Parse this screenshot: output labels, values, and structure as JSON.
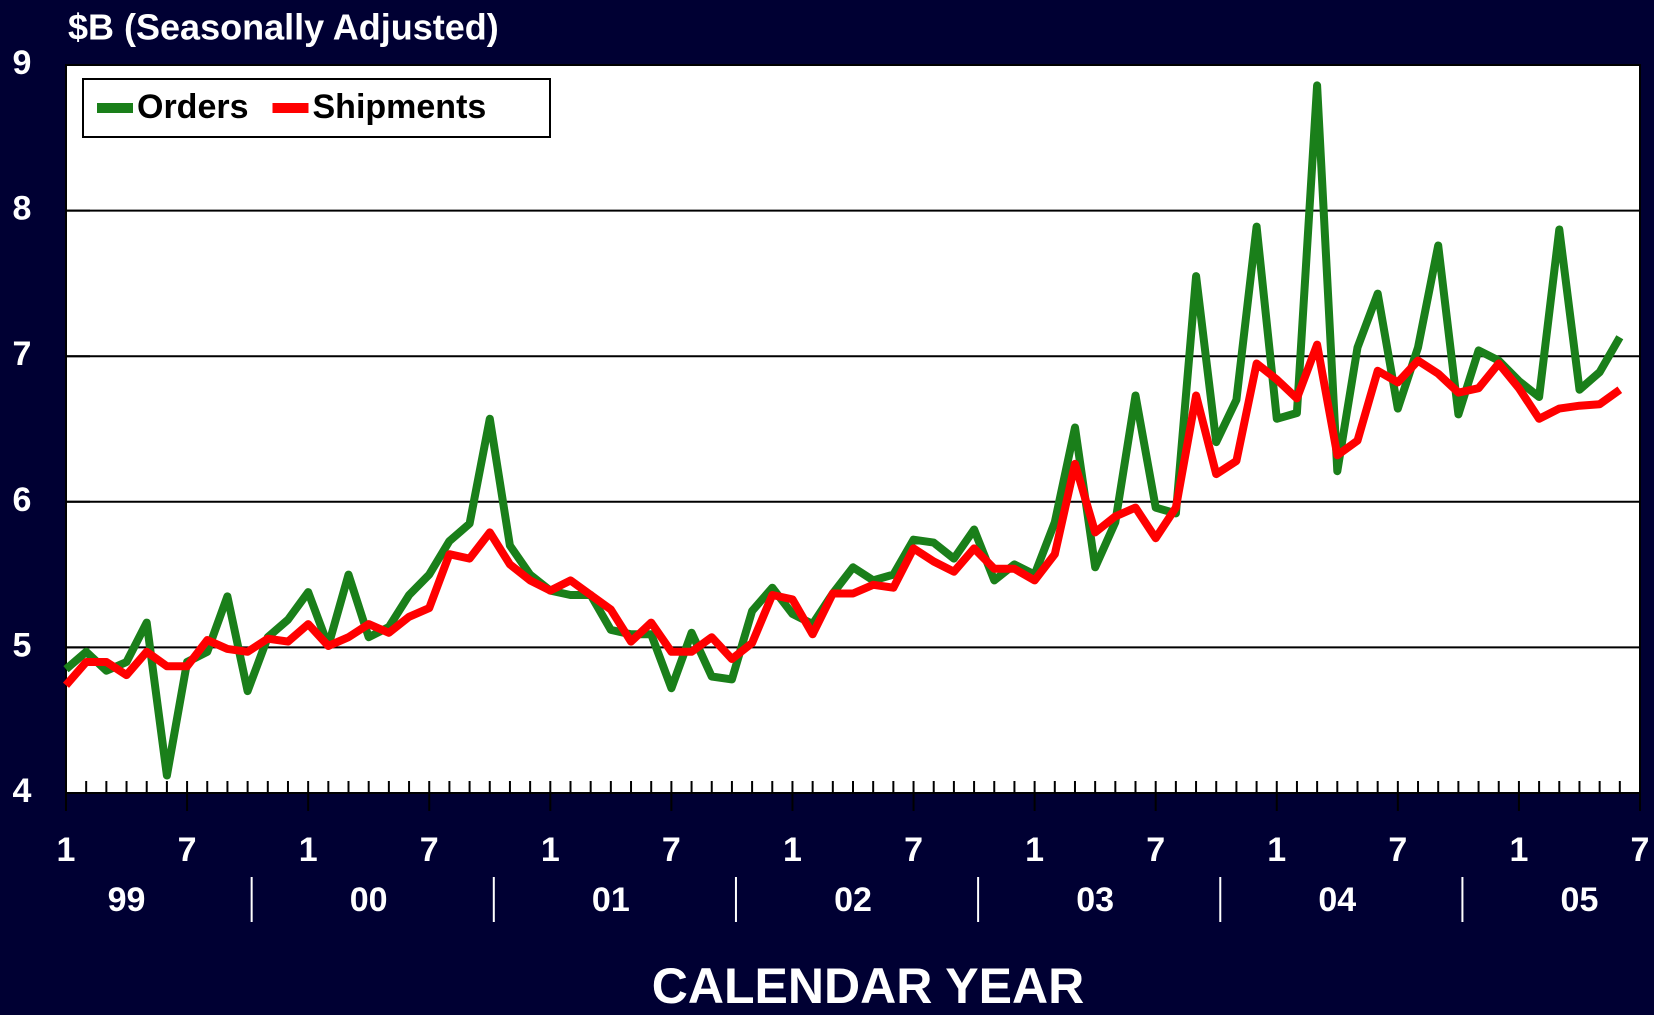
{
  "chart_data": {
    "type": "line",
    "title": "$B (Seasonally Adjusted)",
    "x_label": "CALENDAR YEAR",
    "categories": [
      "1",
      null,
      null,
      null,
      null,
      null,
      "7",
      null,
      null,
      null,
      null,
      null,
      "1",
      null,
      null,
      null,
      null,
      null,
      "7",
      null,
      null,
      null,
      null,
      null,
      "1",
      null,
      null,
      null,
      null,
      null,
      "7",
      null,
      null,
      null,
      null,
      null,
      "1",
      null,
      null,
      null,
      null,
      null,
      "7",
      null,
      null,
      null,
      null,
      null,
      "1",
      null,
      null,
      null,
      null,
      null,
      "7",
      null,
      null,
      null,
      null,
      null,
      "1",
      null,
      null,
      null,
      null,
      null,
      "7",
      null,
      null,
      null,
      null,
      null,
      "1",
      null,
      null,
      null,
      null,
      null,
      "7"
    ],
    "year_labels": [
      "99",
      "00",
      "01",
      "02",
      "03",
      "04",
      "05"
    ],
    "series": [
      {
        "name": "Orders",
        "color": "#1a7f1a",
        "values": [
          4.85,
          4.97,
          4.84,
          4.9,
          5.17,
          4.12,
          4.9,
          4.97,
          5.35,
          4.7,
          5.07,
          5.19,
          5.38,
          5.01,
          5.5,
          5.07,
          5.14,
          5.36,
          5.5,
          5.73,
          5.85,
          6.57,
          5.7,
          5.5,
          5.39,
          5.36,
          5.36,
          5.12,
          5.09,
          5.09,
          4.72,
          5.1,
          4.8,
          4.78,
          5.25,
          5.41,
          5.23,
          5.16,
          5.37,
          5.55,
          5.46,
          5.5,
          5.74,
          5.72,
          5.61,
          5.81,
          5.46,
          5.57,
          5.5,
          5.86,
          6.51,
          5.55,
          5.86,
          6.73,
          5.96,
          5.92,
          7.55,
          6.41,
          6.7,
          7.89,
          6.57,
          6.61,
          8.86,
          6.21,
          7.06,
          7.43,
          6.64,
          7.06,
          7.76,
          6.6,
          7.04,
          6.97,
          6.83,
          6.72,
          7.87,
          6.77,
          6.89,
          7.13,
          null
        ]
      },
      {
        "name": "Shipments",
        "color": "#ff0000",
        "values": [
          4.74,
          4.9,
          4.9,
          4.81,
          4.97,
          4.87,
          4.87,
          5.05,
          4.99,
          4.97,
          5.06,
          5.04,
          5.16,
          5.01,
          5.07,
          5.16,
          5.1,
          5.21,
          5.27,
          5.64,
          5.61,
          5.79,
          5.57,
          5.46,
          5.39,
          5.46,
          5.36,
          5.26,
          5.04,
          5.17,
          4.97,
          4.97,
          5.07,
          4.92,
          5.03,
          5.36,
          5.33,
          5.09,
          5.37,
          5.37,
          5.43,
          5.41,
          5.68,
          5.59,
          5.52,
          5.68,
          5.54,
          5.54,
          5.46,
          5.64,
          6.26,
          5.79,
          5.9,
          5.96,
          5.75,
          5.96,
          6.73,
          6.19,
          6.28,
          6.95,
          6.84,
          6.71,
          7.08,
          6.32,
          6.42,
          6.9,
          6.82,
          6.97,
          6.88,
          6.75,
          6.78,
          6.95,
          6.78,
          6.57,
          6.64,
          6.66,
          6.67,
          6.77,
          null
        ]
      }
    ],
    "ylim": [
      4,
      9
    ],
    "yticks": [
      4,
      5,
      6,
      7,
      8,
      9
    ],
    "grid": true,
    "legend": "top-left"
  }
}
